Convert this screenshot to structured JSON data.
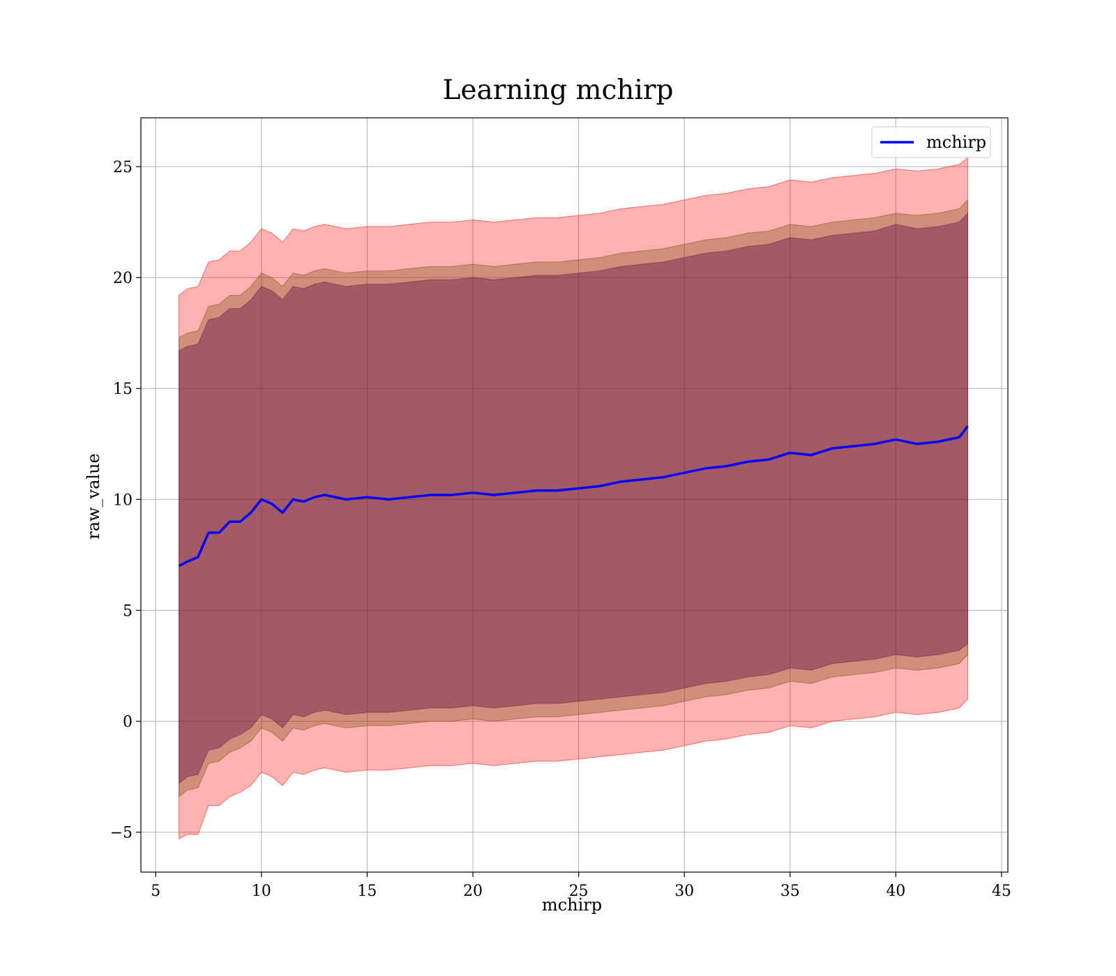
{
  "chart_data": {
    "type": "line",
    "title": "Learning mchirp",
    "xlabel": "mchirp",
    "ylabel": "raw_value",
    "xlim": [
      4.3,
      45.3
    ],
    "ylim": [
      -6.8,
      27.2
    ],
    "xticks": [
      5,
      10,
      15,
      20,
      25,
      30,
      35,
      40,
      45
    ],
    "yticks": [
      -5,
      0,
      5,
      10,
      15,
      20,
      25
    ],
    "grid": true,
    "legend": {
      "position": "top-right",
      "entries": [
        "mchirp"
      ]
    },
    "series": [
      {
        "name": "mchirp",
        "color": "#0000ff",
        "x": [
          6.1,
          6.5,
          7.0,
          7.5,
          8.0,
          8.5,
          9.0,
          9.5,
          10.0,
          10.5,
          11.0,
          11.5,
          12.0,
          12.5,
          13.0,
          14.0,
          15.0,
          16.0,
          17.0,
          18.0,
          19.0,
          20.0,
          21.0,
          22.0,
          23.0,
          24.0,
          25.0,
          26.0,
          27.0,
          28.0,
          29.0,
          30.0,
          31.0,
          32.0,
          33.0,
          34.0,
          35.0,
          36.0,
          37.0,
          38.0,
          39.0,
          40.0,
          41.0,
          42.0,
          43.0,
          43.4
        ],
        "y": [
          7.0,
          7.2,
          7.4,
          8.5,
          8.5,
          9.0,
          9.0,
          9.4,
          10.0,
          9.8,
          9.4,
          10.0,
          9.9,
          10.1,
          10.2,
          10.0,
          10.1,
          10.0,
          10.1,
          10.2,
          10.2,
          10.3,
          10.2,
          10.3,
          10.4,
          10.4,
          10.5,
          10.6,
          10.8,
          10.9,
          11.0,
          11.2,
          11.4,
          11.5,
          11.7,
          11.8,
          12.1,
          12.0,
          12.3,
          12.4,
          12.5,
          12.7,
          12.5,
          12.6,
          12.8,
          13.3
        ]
      }
    ],
    "bands": [
      {
        "color": "#ff0000",
        "opacity": 0.3,
        "x": [
          6.1,
          6.5,
          7.0,
          7.5,
          8.0,
          8.5,
          9.0,
          9.5,
          10.0,
          10.5,
          11.0,
          11.5,
          12.0,
          12.5,
          13.0,
          14.0,
          15.0,
          16.0,
          17.0,
          18.0,
          19.0,
          20.0,
          21.0,
          22.0,
          23.0,
          24.0,
          25.0,
          26.0,
          27.0,
          28.0,
          29.0,
          30.0,
          31.0,
          32.0,
          33.0,
          34.0,
          35.0,
          36.0,
          37.0,
          38.0,
          39.0,
          40.0,
          41.0,
          42.0,
          43.0,
          43.4
        ],
        "upper": [
          19.2,
          19.5,
          19.6,
          20.7,
          20.8,
          21.2,
          21.2,
          21.6,
          22.2,
          22.0,
          21.6,
          22.2,
          22.1,
          22.3,
          22.4,
          22.2,
          22.3,
          22.3,
          22.4,
          22.5,
          22.5,
          22.6,
          22.5,
          22.6,
          22.7,
          22.7,
          22.8,
          22.9,
          23.1,
          23.2,
          23.3,
          23.5,
          23.7,
          23.8,
          24.0,
          24.1,
          24.4,
          24.3,
          24.5,
          24.6,
          24.7,
          24.9,
          24.8,
          24.9,
          25.1,
          25.4
        ],
        "lower": [
          -5.3,
          -5.1,
          -5.1,
          -3.8,
          -3.8,
          -3.4,
          -3.2,
          -2.9,
          -2.3,
          -2.5,
          -2.9,
          -2.3,
          -2.4,
          -2.2,
          -2.1,
          -2.3,
          -2.2,
          -2.2,
          -2.1,
          -2.0,
          -2.0,
          -1.9,
          -2.0,
          -1.9,
          -1.8,
          -1.8,
          -1.7,
          -1.6,
          -1.5,
          -1.4,
          -1.3,
          -1.1,
          -0.9,
          -0.8,
          -0.6,
          -0.5,
          -0.2,
          -0.3,
          0.0,
          0.1,
          0.2,
          0.4,
          0.3,
          0.4,
          0.6,
          1.0
        ]
      },
      {
        "color": "#7a4a10",
        "opacity": 0.35,
        "x": [
          6.1,
          6.5,
          7.0,
          7.5,
          8.0,
          8.5,
          9.0,
          9.5,
          10.0,
          10.5,
          11.0,
          11.5,
          12.0,
          12.5,
          13.0,
          14.0,
          15.0,
          16.0,
          17.0,
          18.0,
          19.0,
          20.0,
          21.0,
          22.0,
          23.0,
          24.0,
          25.0,
          26.0,
          27.0,
          28.0,
          29.0,
          30.0,
          31.0,
          32.0,
          33.0,
          34.0,
          35.0,
          36.0,
          37.0,
          38.0,
          39.0,
          40.0,
          41.0,
          42.0,
          43.0,
          43.4
        ],
        "upper": [
          17.3,
          17.5,
          17.6,
          18.7,
          18.8,
          19.2,
          19.2,
          19.6,
          20.2,
          20.0,
          19.6,
          20.2,
          20.1,
          20.3,
          20.4,
          20.2,
          20.3,
          20.3,
          20.4,
          20.5,
          20.5,
          20.6,
          20.5,
          20.6,
          20.7,
          20.7,
          20.8,
          20.9,
          21.1,
          21.2,
          21.3,
          21.5,
          21.7,
          21.8,
          22.0,
          22.1,
          22.4,
          22.3,
          22.5,
          22.6,
          22.7,
          22.9,
          22.8,
          22.9,
          23.1,
          23.5
        ],
        "lower": [
          -3.4,
          -3.1,
          -3.0,
          -1.9,
          -1.8,
          -1.4,
          -1.2,
          -0.9,
          -0.3,
          -0.5,
          -0.9,
          -0.3,
          -0.4,
          -0.2,
          -0.1,
          -0.3,
          -0.2,
          -0.2,
          -0.1,
          0.0,
          0.0,
          0.1,
          0.0,
          0.1,
          0.2,
          0.2,
          0.3,
          0.4,
          0.5,
          0.6,
          0.7,
          0.9,
          1.1,
          1.2,
          1.4,
          1.5,
          1.8,
          1.7,
          2.0,
          2.1,
          2.2,
          2.4,
          2.3,
          2.4,
          2.6,
          3.0
        ]
      },
      {
        "color": "#6a1a4a",
        "opacity": 0.45,
        "x": [
          6.1,
          6.5,
          7.0,
          7.5,
          8.0,
          8.5,
          9.0,
          9.5,
          10.0,
          10.5,
          11.0,
          11.5,
          12.0,
          12.5,
          13.0,
          14.0,
          15.0,
          16.0,
          17.0,
          18.0,
          19.0,
          20.0,
          21.0,
          22.0,
          23.0,
          24.0,
          25.0,
          26.0,
          27.0,
          28.0,
          29.0,
          30.0,
          31.0,
          32.0,
          33.0,
          34.0,
          35.0,
          36.0,
          37.0,
          38.0,
          39.0,
          40.0,
          41.0,
          42.0,
          43.0,
          43.4
        ],
        "upper": [
          16.7,
          16.9,
          17.0,
          18.1,
          18.2,
          18.6,
          18.6,
          19.0,
          19.6,
          19.4,
          19.0,
          19.6,
          19.5,
          19.7,
          19.8,
          19.6,
          19.7,
          19.7,
          19.8,
          19.9,
          19.9,
          20.0,
          19.9,
          20.0,
          20.1,
          20.1,
          20.2,
          20.3,
          20.5,
          20.6,
          20.7,
          20.9,
          21.1,
          21.2,
          21.4,
          21.5,
          21.8,
          21.7,
          21.9,
          22.0,
          22.1,
          22.4,
          22.2,
          22.3,
          22.5,
          22.9
        ],
        "lower": [
          -2.8,
          -2.5,
          -2.4,
          -1.3,
          -1.2,
          -0.8,
          -0.6,
          -0.3,
          0.3,
          0.1,
          -0.3,
          0.3,
          0.2,
          0.4,
          0.5,
          0.3,
          0.4,
          0.4,
          0.5,
          0.6,
          0.6,
          0.7,
          0.6,
          0.7,
          0.8,
          0.8,
          0.9,
          1.0,
          1.1,
          1.2,
          1.3,
          1.5,
          1.7,
          1.8,
          2.0,
          2.1,
          2.4,
          2.3,
          2.6,
          2.7,
          2.8,
          3.0,
          2.9,
          3.0,
          3.2,
          3.5
        ]
      }
    ]
  }
}
